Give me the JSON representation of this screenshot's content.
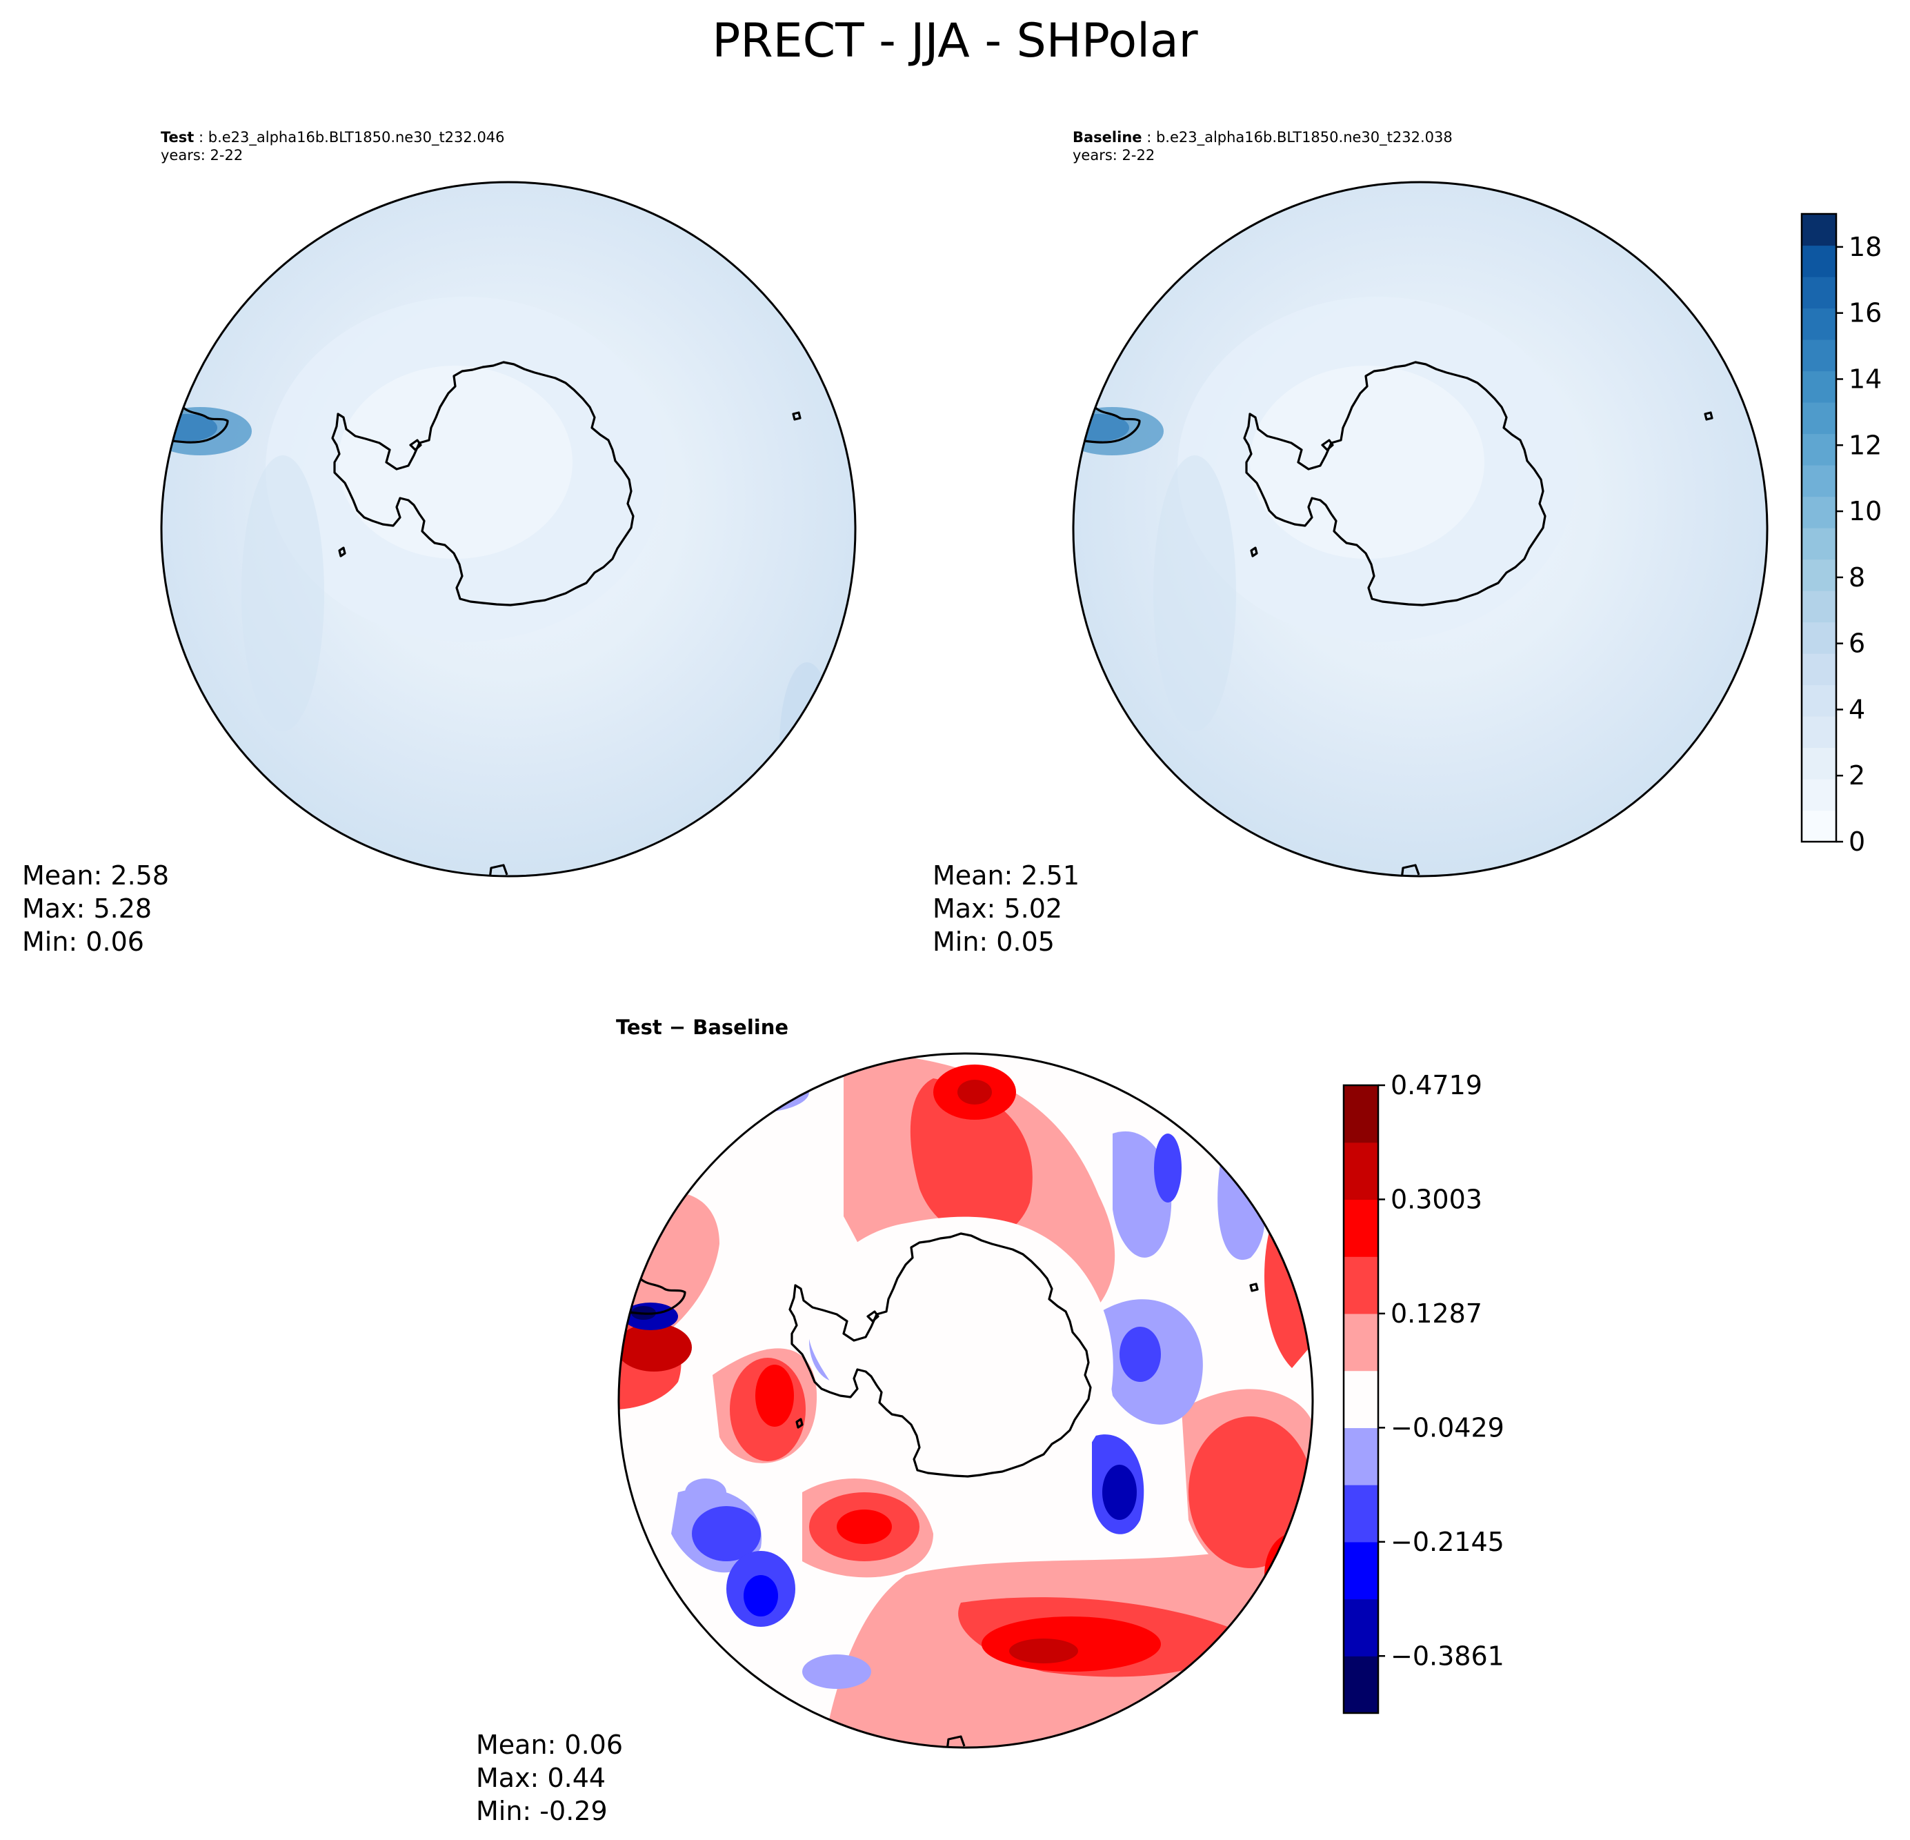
{
  "figure": {
    "title": "PRECT - JJA - SHPolar"
  },
  "panels": {
    "test": {
      "label": "Test",
      "case": " : b.e23_alpha16b.BLT1850.ne30_t232.046",
      "years": "years: 2-22",
      "mean": "Mean:  2.58",
      "max": "Max:  5.28",
      "min": "Min:  0.06"
    },
    "baseline": {
      "label": "Baseline",
      "case": " : b.e23_alpha16b.BLT1850.ne30_t232.038",
      "years": "years: 2-22",
      "mean": "Mean:  2.51",
      "max": "Max:  5.02",
      "min": "Min:  0.05"
    },
    "difference": {
      "title_a": "Test",
      "title_op": " − ",
      "title_b": "Baseline",
      "mean": "Mean:  0.06",
      "max": "Max:  0.44",
      "min": "Min: -0.29"
    }
  },
  "chart_data": [
    {
      "type": "heatmap",
      "name": "test",
      "projection": "south polar stereographic",
      "title": "Test : b.e23_alpha16b.BLT1850.ne30_t232.046",
      "mean": 2.58,
      "max": 5.28,
      "min": 0.06,
      "colormap": "Blues"
    },
    {
      "type": "heatmap",
      "name": "baseline",
      "projection": "south polar stereographic",
      "title": "Baseline : b.e23_alpha16b.BLT1850.ne30_t232.038",
      "mean": 2.51,
      "max": 5.02,
      "min": 0.05,
      "colormap": "Blues",
      "colorbar": {
        "range": [
          0,
          19
        ],
        "levels": 19,
        "ticks": [
          "0",
          "2",
          "4",
          "6",
          "8",
          "10",
          "12",
          "14",
          "16",
          "18"
        ],
        "colors": [
          "#f7fbff",
          "#eef5fc",
          "#e6f0f9",
          "#dce9f6",
          "#d4e4f4",
          "#cbdef1",
          "#bfd8ed",
          "#b2d2e8",
          "#a3cce3",
          "#93c4df",
          "#81badb",
          "#70b0d7",
          "#5fa6d1",
          "#4f9bcb",
          "#4090c5",
          "#3282be",
          "#2474b6",
          "#1966ad",
          "#0d57a1",
          "#08306b"
        ]
      }
    },
    {
      "type": "heatmap",
      "name": "difference",
      "projection": "south polar stereographic",
      "title": "Test − Baseline",
      "mean": 0.06,
      "max": 0.44,
      "min": -0.29,
      "colormap": "seismic",
      "colorbar": {
        "range": [
          -0.4719,
          0.4719
        ],
        "levels": 11,
        "ticks": [
          "0.4719",
          "0.3003",
          "0.1287",
          "−0.0429",
          "−0.2145",
          "−0.3861"
        ],
        "colors": [
          "#000066",
          "#0000b4",
          "#0000ff",
          "#4343ff",
          "#a2a2ff",
          "#fffdfd",
          "#ffa2a2",
          "#ff4343",
          "#ff0000",
          "#c80000",
          "#8c0000"
        ]
      }
    }
  ]
}
